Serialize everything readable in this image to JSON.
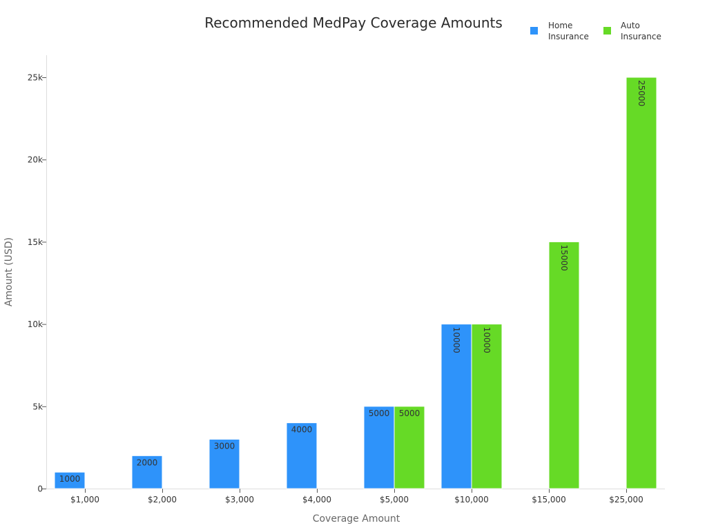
{
  "chart_data": {
    "type": "bar",
    "title": "Recommended MedPay Coverage Amounts",
    "xlabel": "Coverage Amount",
    "ylabel": "Amount (USD)",
    "categories": [
      "$1,000",
      "$2,000",
      "$3,000",
      "$4,000",
      "$5,000",
      "$10,000",
      "$15,000",
      "$25,000"
    ],
    "series": [
      {
        "name": "Home Insurance",
        "legend_lines": [
          "Home",
          "Insurance"
        ],
        "color": "#2e93fa",
        "values": [
          1000,
          2000,
          3000,
          4000,
          5000,
          10000,
          null,
          null
        ]
      },
      {
        "name": "Auto Insurance",
        "legend_lines": [
          "Auto",
          "Insurance"
        ],
        "color": "#66da26",
        "values": [
          null,
          null,
          null,
          null,
          5000,
          10000,
          15000,
          25000
        ]
      }
    ],
    "ylim": [
      0,
      26000
    ],
    "yticks": [
      0,
      5000,
      10000,
      15000,
      20000,
      25000
    ],
    "ytick_labels": [
      "0",
      "5k",
      "10k",
      "15k",
      "20k",
      "25k"
    ],
    "grid": false,
    "legend_position": "top-right"
  }
}
